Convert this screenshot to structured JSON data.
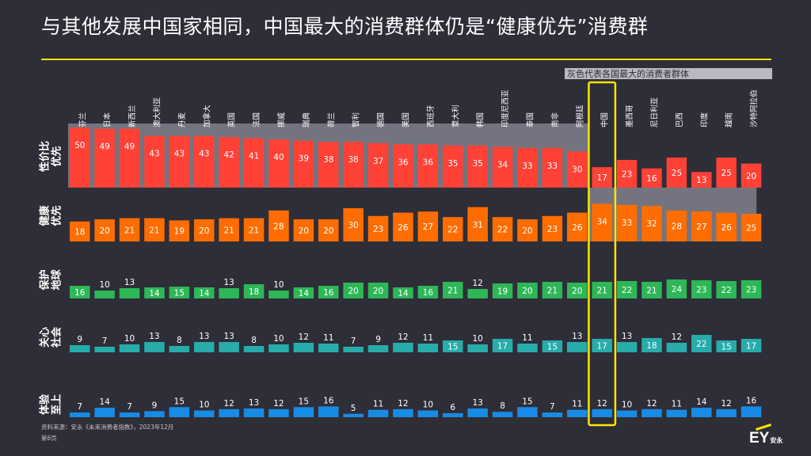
{
  "title": "与其他发展中国家相同，中国最大的消费群体仍是“健康优先”消费群",
  "legend_note": "灰色代表各国最大的消费者群体",
  "source": "资料来源：安永《未来消费者指数》，2023年12月",
  "page_number": "第6页",
  "logo": {
    "text": "EY",
    "suffix": "安永"
  },
  "colors": {
    "background": "#2e2e38",
    "highlight_band": "#747480",
    "highlight_box": "#ffe600",
    "rule": "#ffe600",
    "series": [
      "#ff4136",
      "#ff6d00",
      "#2db757",
      "#27acaa",
      "#188ce5"
    ]
  },
  "chart_data": {
    "type": "bar",
    "categories": [
      "芬兰",
      "日本",
      "新西兰",
      "澳大利亚",
      "丹麦",
      "加拿大",
      "英国",
      "法国",
      "挪威",
      "瑞典",
      "荷兰",
      "智利",
      "德国",
      "美国",
      "西班牙",
      "意大利",
      "韩国",
      "印度尼西亚",
      "泰国",
      "南非",
      "阿根廷",
      "中国",
      "墨西哥",
      "尼日利亚",
      "巴西",
      "印度",
      "越南",
      "沙特阿拉伯"
    ],
    "series": [
      {
        "name": "性价比优先",
        "values": [
          50,
          49,
          49,
          43,
          43,
          43,
          42,
          41,
          40,
          39,
          38,
          38,
          37,
          36,
          36,
          35,
          35,
          34,
          33,
          33,
          30,
          17,
          23,
          16,
          25,
          13,
          25,
          20
        ]
      },
      {
        "name": "健康优先",
        "values": [
          18,
          20,
          21,
          21,
          19,
          20,
          21,
          21,
          28,
          20,
          20,
          30,
          23,
          26,
          27,
          22,
          31,
          22,
          20,
          23,
          26,
          34,
          33,
          32,
          28,
          27,
          26,
          25
        ]
      },
      {
        "name": "保护地球",
        "values": [
          16,
          10,
          13,
          14,
          15,
          14,
          13,
          18,
          10,
          14,
          16,
          20,
          20,
          14,
          16,
          21,
          12,
          19,
          20,
          21,
          20,
          21,
          22,
          21,
          24,
          23,
          22,
          23
        ]
      },
      {
        "name": "关心社会",
        "values": [
          9,
          7,
          10,
          13,
          8,
          13,
          13,
          8,
          10,
          12,
          11,
          7,
          9,
          12,
          11,
          15,
          10,
          17,
          11,
          15,
          13,
          17,
          13,
          18,
          12,
          22,
          15,
          17
        ]
      },
      {
        "name": "体验至上",
        "values": [
          7,
          14,
          7,
          9,
          15,
          10,
          12,
          13,
          12,
          15,
          16,
          5,
          11,
          12,
          10,
          6,
          13,
          8,
          15,
          7,
          11,
          12,
          10,
          12,
          11,
          14,
          12,
          16
        ]
      }
    ],
    "largest_segment": [
      "性价比优先",
      "性价比优先",
      "性价比优先",
      "性价比优先",
      "性价比优先",
      "性价比优先",
      "性价比优先",
      "性价比优先",
      "性价比优先",
      "性价比优先",
      "性价比优先",
      "性价比优先",
      "性价比优先",
      "性价比优先",
      "性价比优先",
      "性价比优先",
      "性价比优先",
      "性价比优先",
      "性价比优先",
      "性价比优先",
      "性价比优先",
      "健康优先",
      "健康优先",
      "健康优先",
      "健康优先",
      "健康优先",
      "健康优先",
      "健康优先"
    ],
    "highlighted_category": "中国"
  }
}
